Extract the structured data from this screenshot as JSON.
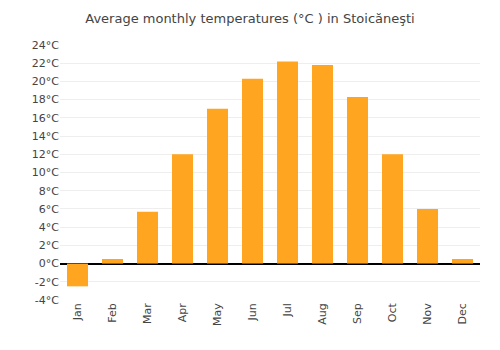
{
  "chart_data": {
    "type": "bar",
    "title": "Average monthly temperatures (°C ) in Stoicăneşti",
    "categories": [
      "Jan",
      "Feb",
      "Mar",
      "Apr",
      "May",
      "Jun",
      "Jul",
      "Aug",
      "Sep",
      "Oct",
      "Nov",
      "Dec"
    ],
    "values": [
      -2.5,
      0.5,
      5.7,
      12.0,
      17.0,
      20.3,
      22.2,
      21.8,
      18.3,
      12.0,
      6.0,
      0.5
    ],
    "color": "#FFA520",
    "ylim": [
      -4,
      24
    ],
    "yticks": [
      {
        "value": -4,
        "label": "-4°C"
      },
      {
        "value": -2,
        "label": "-2°C"
      },
      {
        "value": 0,
        "label": "0°C"
      },
      {
        "value": 2,
        "label": "2°C"
      },
      {
        "value": 4,
        "label": "4°C"
      },
      {
        "value": 6,
        "label": "6°C"
      },
      {
        "value": 8,
        "label": "8°C"
      },
      {
        "value": 10,
        "label": "10°C"
      },
      {
        "value": 12,
        "label": "12°C"
      },
      {
        "value": 14,
        "label": "14°C"
      },
      {
        "value": 16,
        "label": "16°C"
      },
      {
        "value": 18,
        "label": "18°C"
      },
      {
        "value": 20,
        "label": "20°C"
      },
      {
        "value": 22,
        "label": "22°C"
      },
      {
        "value": 24,
        "label": "24°C"
      }
    ],
    "grid": true
  }
}
